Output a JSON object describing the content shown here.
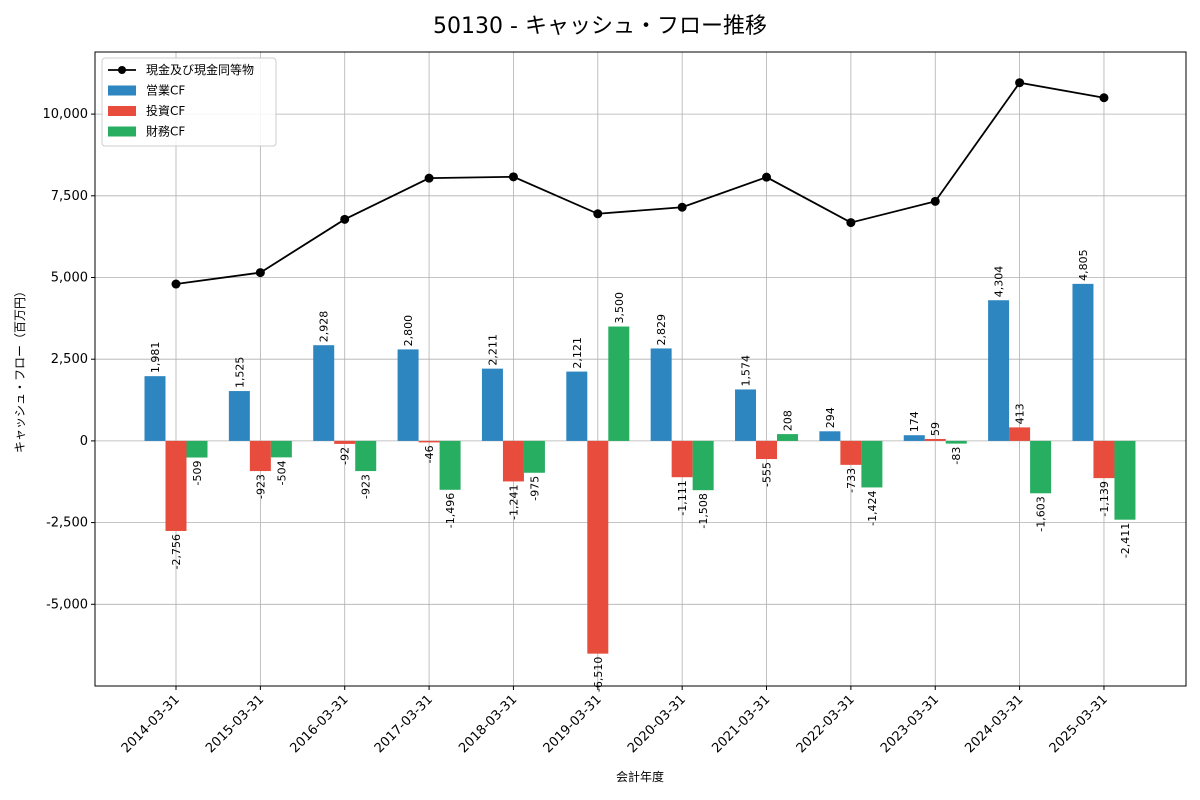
{
  "chart_data": {
    "type": "bar",
    "title": "50130 - キャッシュ・フロー推移",
    "xlabel": "会計年度",
    "ylabel": "キャッシュ・フロー（百万円）",
    "categories": [
      "2014-03-31",
      "2015-03-31",
      "2016-03-31",
      "2017-03-31",
      "2018-03-31",
      "2019-03-31",
      "2020-03-31",
      "2021-03-31",
      "2022-03-31",
      "2023-03-31",
      "2024-03-31",
      "2025-03-31"
    ],
    "ylim": [
      -7500,
      11900
    ],
    "yticks": [
      -5000,
      -2500,
      0,
      2500,
      5000,
      7500,
      10000
    ],
    "ytick_labels": [
      "-5,000",
      "-2,500",
      "0",
      "2,500",
      "5,000",
      "7,500",
      "10,000"
    ],
    "grid": true,
    "legend_position": "top-left",
    "series": [
      {
        "name": "営業CF",
        "kind": "bar",
        "color": "#2e86c1",
        "values": [
          1981,
          1525,
          2928,
          2800,
          2211,
          2121,
          2829,
          1574,
          294,
          174,
          4304,
          4805
        ],
        "labels": [
          "1,981",
          "1,525",
          "2,928",
          "2,800",
          "2,211",
          "2,121",
          "2,829",
          "1,574",
          "294",
          "174",
          "4,304",
          "4,805"
        ]
      },
      {
        "name": "投資CF",
        "kind": "bar",
        "color": "#e74c3c",
        "values": [
          -2756,
          -923,
          -92,
          -46,
          -1241,
          -6510,
          -1111,
          -555,
          -733,
          59,
          413,
          -1139
        ],
        "labels": [
          "-2,756",
          "-923",
          "-92",
          "-46",
          "-1,241",
          "-6,510",
          "-1,111",
          "-555",
          "-733",
          "59",
          "413",
          "-1,139"
        ]
      },
      {
        "name": "財務CF",
        "kind": "bar",
        "color": "#27ae60",
        "values": [
          -509,
          -504,
          -923,
          -1496,
          -975,
          3500,
          -1508,
          208,
          -1424,
          -83,
          -1603,
          -2411
        ],
        "labels": [
          "-509",
          "-504",
          "-923",
          "-1,496",
          "-975",
          "3,500",
          "-1,508",
          "208",
          "-1,424",
          "-83",
          "-1,603",
          "-2,411"
        ]
      },
      {
        "name": "現金及び現金同等物",
        "kind": "line",
        "color": "#000000",
        "values": [
          4800,
          5150,
          6780,
          8040,
          8080,
          6950,
          7150,
          8070,
          6680,
          7330,
          10960,
          10500
        ]
      }
    ]
  }
}
